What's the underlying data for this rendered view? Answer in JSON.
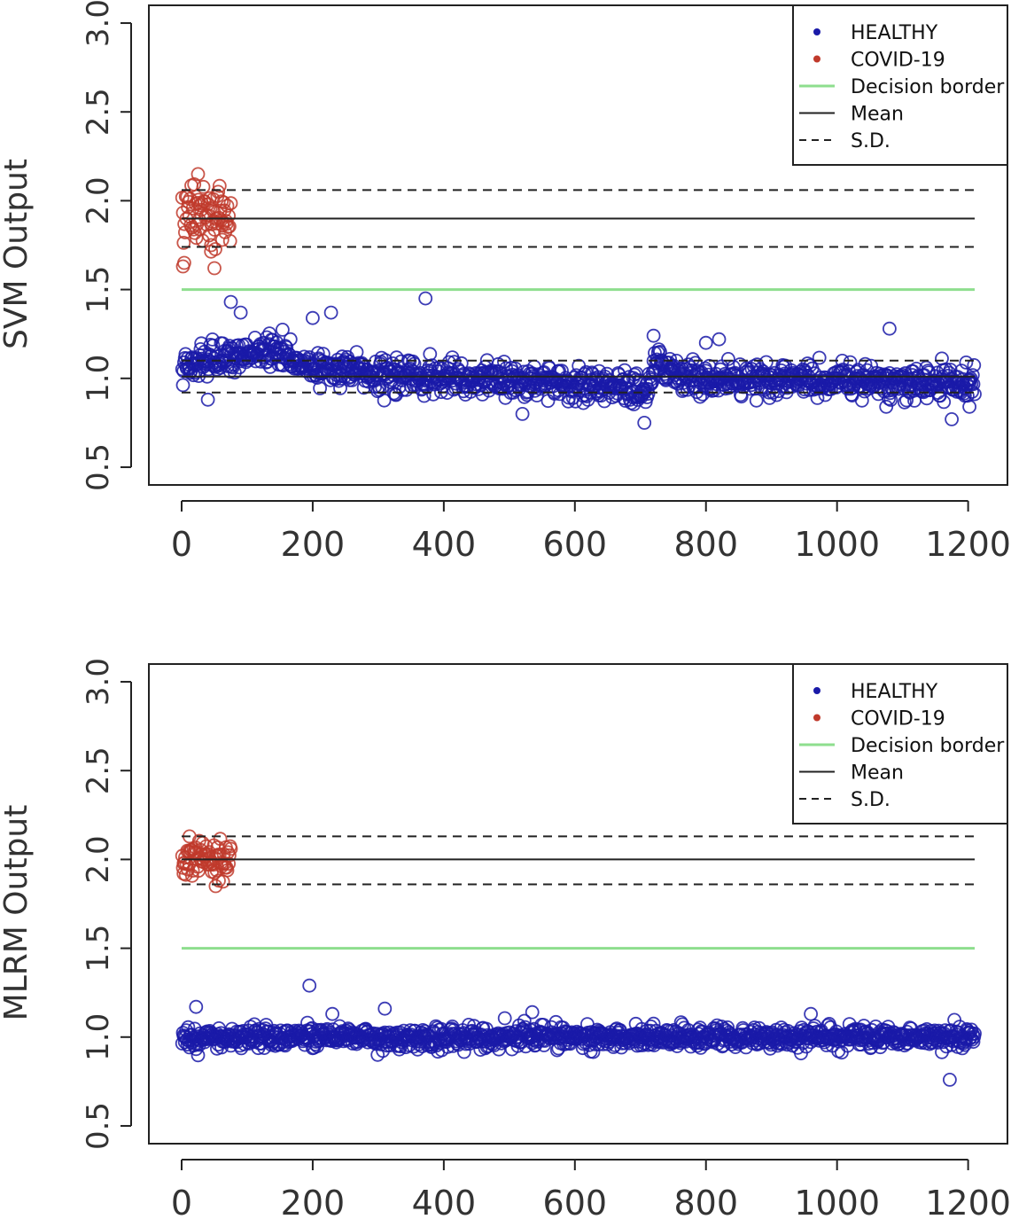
{
  "chart_data": [
    {
      "type": "scatter",
      "title": "",
      "xlabel": "",
      "ylabel": "SVM Output",
      "xlim": [
        -50,
        1260
      ],
      "ylim": [
        0.4,
        3.1
      ],
      "xticks": [
        0,
        200,
        400,
        600,
        800,
        1000,
        1200
      ],
      "xtick_labels": [
        "0",
        "200",
        "400",
        "600",
        "800",
        "1000",
        "1200"
      ],
      "yticks": [
        0.5,
        1.0,
        1.5,
        2.0,
        2.5,
        3.0
      ],
      "ytick_labels": [
        "0.5",
        "1.0",
        "1.5",
        "2.0",
        "2.5",
        "3.0"
      ],
      "grid": false,
      "legend_position": "top-right",
      "legend": [
        {
          "label": "HEALTHY",
          "kind": "point",
          "color": "#1a1aa8"
        },
        {
          "label": "COVID-19",
          "kind": "point",
          "color": "#c0392b"
        },
        {
          "label": "Decision border",
          "kind": "line",
          "color": "#8ede8e"
        },
        {
          "label": "Mean",
          "kind": "line",
          "color": "#222222"
        },
        {
          "label": "S.D.",
          "kind": "dashed",
          "color": "#222222"
        }
      ],
      "series": [
        {
          "name": "COVID-19",
          "color": "#c0392b",
          "x_range": [
            1,
            75
          ],
          "count": 70,
          "center": 1.93,
          "spread": 0.1,
          "extra_points": [
            [
              2,
              1.63
            ],
            [
              4,
              1.65
            ],
            [
              50,
              1.62
            ],
            [
              25,
              2.15
            ],
            [
              45,
              1.75
            ],
            [
              62,
              1.78
            ]
          ]
        },
        {
          "name": "HEALTHY",
          "color": "#1a1aa8",
          "x_range": [
            1,
            1210
          ],
          "count": 1210,
          "baseline": [
            [
              0,
              1.07
            ],
            [
              60,
              1.1
            ],
            [
              120,
              1.17
            ],
            [
              200,
              1.07
            ],
            [
              300,
              1.02
            ],
            [
              500,
              0.99
            ],
            [
              650,
              0.97
            ],
            [
              710,
              0.92
            ],
            [
              725,
              1.1
            ],
            [
              760,
              1.0
            ],
            [
              1000,
              0.99
            ],
            [
              1210,
              0.97
            ]
          ],
          "spread": 0.045,
          "extra_points": [
            [
              75,
              1.43
            ],
            [
              90,
              1.37
            ],
            [
              200,
              1.34
            ],
            [
              228,
              1.37
            ],
            [
              372,
              1.45
            ],
            [
              720,
              1.24
            ],
            [
              1080,
              1.28
            ],
            [
              706,
              0.75
            ],
            [
              1175,
              0.77
            ],
            [
              1202,
              0.84
            ],
            [
              1075,
              0.84
            ],
            [
              800,
              1.2
            ],
            [
              820,
              1.22
            ],
            [
              520,
              0.8
            ],
            [
              40,
              0.88
            ]
          ]
        }
      ],
      "reference_lines": {
        "decision_border": 1.5,
        "mean": [
          {
            "from": 0,
            "to": 1210,
            "y": 1.9
          },
          {
            "from": 0,
            "to": 1210,
            "y": 1.01
          }
        ],
        "sd": [
          {
            "from": 0,
            "to": 1210,
            "y": 2.06
          },
          {
            "from": 0,
            "to": 1210,
            "y": 1.74
          },
          {
            "from": 0,
            "to": 1210,
            "y": 1.1
          },
          {
            "from": 0,
            "to": 1210,
            "y": 0.92
          }
        ]
      }
    },
    {
      "type": "scatter",
      "title": "",
      "xlabel": "",
      "ylabel": "MLRM Output",
      "xlim": [
        -50,
        1260
      ],
      "ylim": [
        0.4,
        3.1
      ],
      "xticks": [
        0,
        200,
        400,
        600,
        800,
        1000,
        1200
      ],
      "xtick_labels": [
        "0",
        "200",
        "400",
        "600",
        "800",
        "1000",
        "1200"
      ],
      "yticks": [
        0.5,
        1.0,
        1.5,
        2.0,
        2.5,
        3.0
      ],
      "ytick_labels": [
        "0.5",
        "1.0",
        "1.5",
        "2.0",
        "2.5",
        "3.0"
      ],
      "grid": false,
      "legend_position": "top-right",
      "legend": [
        {
          "label": "HEALTHY",
          "kind": "point",
          "color": "#1a1aa8"
        },
        {
          "label": "COVID-19",
          "kind": "point",
          "color": "#c0392b"
        },
        {
          "label": "Decision border",
          "kind": "line",
          "color": "#8ede8e"
        },
        {
          "label": "Mean",
          "kind": "line",
          "color": "#222222"
        },
        {
          "label": "S.D.",
          "kind": "dashed",
          "color": "#222222"
        }
      ],
      "series": [
        {
          "name": "COVID-19",
          "color": "#c0392b",
          "x_range": [
            1,
            75
          ],
          "count": 70,
          "center": 2.01,
          "spread": 0.05,
          "extra_points": [
            [
              52,
              1.85
            ],
            [
              12,
              2.13
            ],
            [
              3,
              1.92
            ]
          ]
        },
        {
          "name": "HEALTHY",
          "color": "#1a1aa8",
          "x_range": [
            1,
            1210
          ],
          "count": 1210,
          "baseline": [
            [
              0,
              1.0
            ],
            [
              1210,
              1.0
            ]
          ],
          "spread": 0.03,
          "extra_points": [
            [
              195,
              1.29
            ],
            [
              22,
              1.17
            ],
            [
              310,
              1.16
            ],
            [
              230,
              1.13
            ],
            [
              1172,
              0.76
            ],
            [
              535,
              1.14
            ],
            [
              960,
              1.13
            ]
          ]
        }
      ],
      "reference_lines": {
        "decision_border": 1.5,
        "mean": [
          {
            "from": 0,
            "to": 1210,
            "y": 2.0
          }
        ],
        "sd": [
          {
            "from": 0,
            "to": 1210,
            "y": 2.13
          },
          {
            "from": 0,
            "to": 1210,
            "y": 1.86
          }
        ]
      }
    }
  ]
}
